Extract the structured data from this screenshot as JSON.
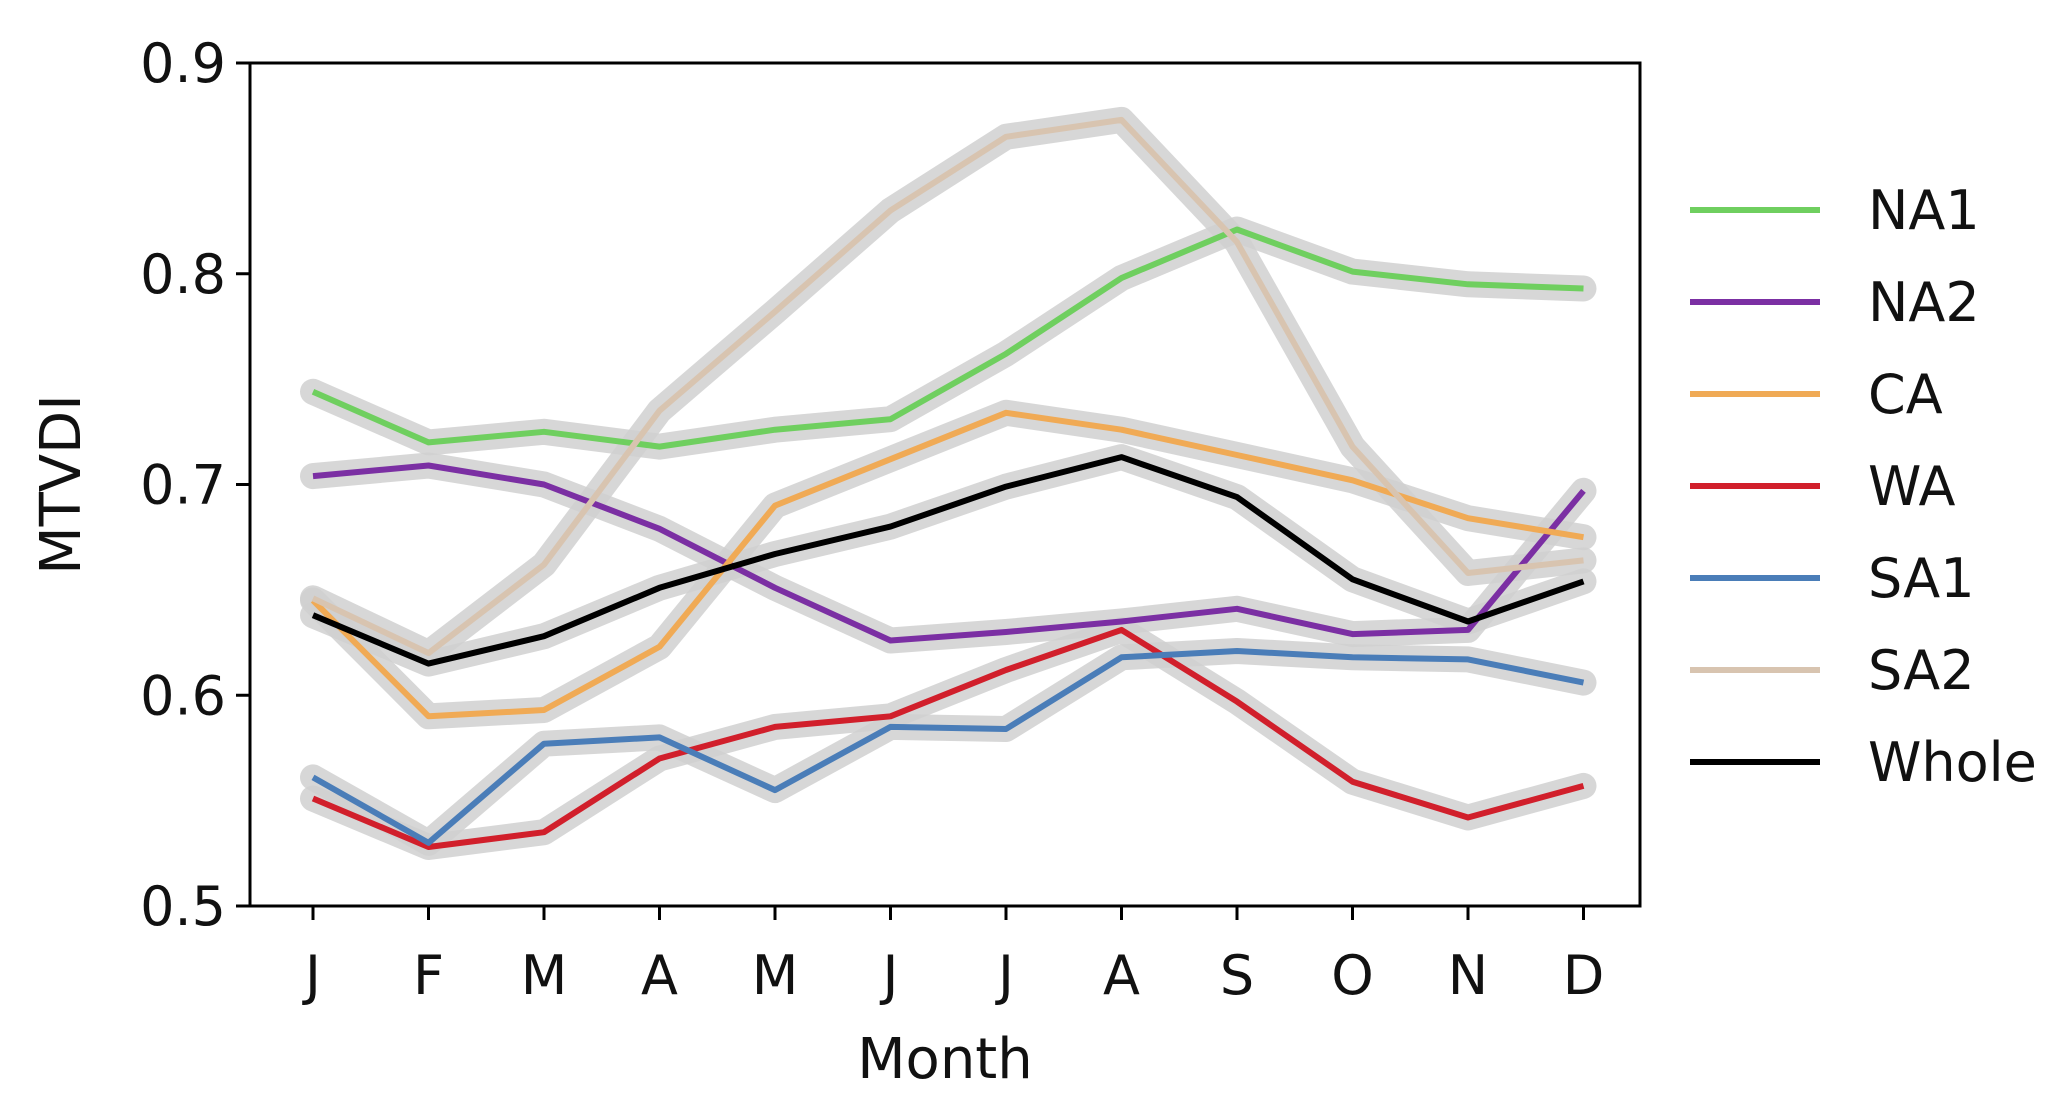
{
  "chart_data": {
    "type": "line",
    "title": "",
    "xlabel": "Month",
    "ylabel": "MTVDI",
    "categories": [
      "J",
      "F",
      "M",
      "A",
      "M",
      "J",
      "J",
      "A",
      "S",
      "O",
      "N",
      "D"
    ],
    "ylim": [
      0.5,
      0.9
    ],
    "yticks": [
      0.5,
      0.6,
      0.7,
      0.8,
      0.9
    ],
    "ytick_labels": [
      "0.5",
      "0.6",
      "0.7",
      "0.8",
      "0.9"
    ],
    "grid": false,
    "legend_position": "right",
    "band_color": "#d0d0d0",
    "series": [
      {
        "name": "NA1",
        "color": "#6fcf5f",
        "values": [
          0.744,
          0.72,
          0.725,
          0.718,
          0.726,
          0.731,
          0.762,
          0.798,
          0.821,
          0.801,
          0.795,
          0.793
        ]
      },
      {
        "name": "NA2",
        "color": "#7b2fa3",
        "values": [
          0.704,
          0.709,
          0.7,
          0.679,
          0.651,
          0.626,
          0.63,
          0.635,
          0.641,
          0.629,
          0.631,
          0.697
        ]
      },
      {
        "name": "CA",
        "color": "#f0aa55",
        "values": [
          0.645,
          0.59,
          0.593,
          0.623,
          0.69,
          0.712,
          0.734,
          0.726,
          0.714,
          0.702,
          0.684,
          0.675
        ]
      },
      {
        "name": "WA",
        "color": "#d11f2b",
        "values": [
          0.551,
          0.528,
          0.535,
          0.57,
          0.585,
          0.59,
          0.612,
          0.631,
          0.597,
          0.559,
          0.542,
          0.557
        ]
      },
      {
        "name": "SA1",
        "color": "#4a7db8",
        "values": [
          0.561,
          0.53,
          0.577,
          0.58,
          0.555,
          0.585,
          0.584,
          0.618,
          0.621,
          0.618,
          0.617,
          0.606
        ]
      },
      {
        "name": "SA2",
        "color": "#d8c4b0",
        "values": [
          0.646,
          0.62,
          0.662,
          0.735,
          0.782,
          0.83,
          0.865,
          0.873,
          0.815,
          0.718,
          0.658,
          0.664
        ]
      },
      {
        "name": "Whole",
        "color": "#000000",
        "values": [
          0.638,
          0.615,
          0.628,
          0.651,
          0.667,
          0.68,
          0.699,
          0.713,
          0.694,
          0.655,
          0.635,
          0.654
        ]
      }
    ]
  }
}
